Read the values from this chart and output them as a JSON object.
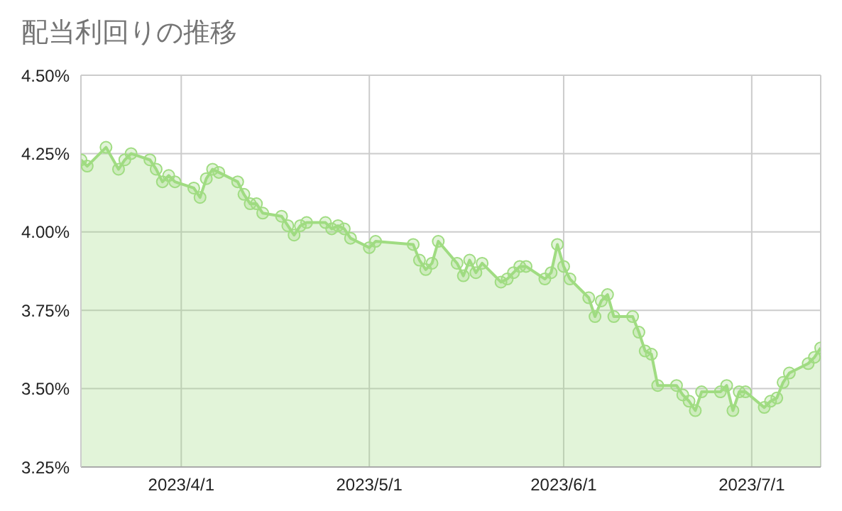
{
  "chart_data": {
    "type": "area",
    "title": "配当利回りの推移",
    "x": [
      "2023-03-16",
      "2023-03-17",
      "2023-03-20",
      "2023-03-22",
      "2023-03-23",
      "2023-03-24",
      "2023-03-27",
      "2023-03-28",
      "2023-03-29",
      "2023-03-30",
      "2023-03-31",
      "2023-04-03",
      "2023-04-04",
      "2023-04-05",
      "2023-04-06",
      "2023-04-07",
      "2023-04-10",
      "2023-04-11",
      "2023-04-12",
      "2023-04-13",
      "2023-04-14",
      "2023-04-17",
      "2023-04-18",
      "2023-04-19",
      "2023-04-20",
      "2023-04-21",
      "2023-04-24",
      "2023-04-25",
      "2023-04-26",
      "2023-04-27",
      "2023-04-28",
      "2023-05-01",
      "2023-05-02",
      "2023-05-08",
      "2023-05-09",
      "2023-05-10",
      "2023-05-11",
      "2023-05-12",
      "2023-05-15",
      "2023-05-16",
      "2023-05-17",
      "2023-05-18",
      "2023-05-19",
      "2023-05-22",
      "2023-05-23",
      "2023-05-24",
      "2023-05-25",
      "2023-05-26",
      "2023-05-29",
      "2023-05-30",
      "2023-05-31",
      "2023-06-01",
      "2023-06-02",
      "2023-06-05",
      "2023-06-06",
      "2023-06-07",
      "2023-06-08",
      "2023-06-09",
      "2023-06-12",
      "2023-06-13",
      "2023-06-14",
      "2023-06-15",
      "2023-06-16",
      "2023-06-19",
      "2023-06-20",
      "2023-06-21",
      "2023-06-22",
      "2023-06-23",
      "2023-06-26",
      "2023-06-27",
      "2023-06-28",
      "2023-06-29",
      "2023-06-30",
      "2023-07-03",
      "2023-07-04",
      "2023-07-05",
      "2023-07-06",
      "2023-07-07",
      "2023-07-10",
      "2023-07-11",
      "2023-07-12"
    ],
    "series": [
      {
        "color": "#a0dc82",
        "values": [
          4.23,
          4.21,
          4.27,
          4.2,
          4.23,
          4.25,
          4.23,
          4.2,
          4.16,
          4.18,
          4.16,
          4.14,
          4.11,
          4.17,
          4.2,
          4.19,
          4.16,
          4.12,
          4.09,
          4.09,
          4.06,
          4.05,
          4.02,
          3.99,
          4.02,
          4.03,
          4.03,
          4.01,
          4.02,
          4.01,
          3.98,
          3.95,
          3.97,
          3.96,
          3.91,
          3.88,
          3.9,
          3.97,
          3.9,
          3.86,
          3.91,
          3.87,
          3.9,
          3.84,
          3.85,
          3.87,
          3.89,
          3.89,
          3.85,
          3.87,
          3.96,
          3.89,
          3.85,
          3.79,
          3.73,
          3.78,
          3.8,
          3.73,
          3.73,
          3.68,
          3.62,
          3.61,
          3.51,
          3.51,
          3.48,
          3.46,
          3.43,
          3.49,
          3.49,
          3.51,
          3.43,
          3.49,
          3.49,
          3.44,
          3.46,
          3.47,
          3.52,
          3.55,
          3.58,
          3.6,
          3.63
        ]
      }
    ],
    "xlim": [
      "2023-03-16",
      "2023-07-12"
    ],
    "xticks": [
      {
        "value": "2023-04-01",
        "label": "2023/4/1"
      },
      {
        "value": "2023-05-01",
        "label": "2023/5/1"
      },
      {
        "value": "2023-06-01",
        "label": "2023/6/1"
      },
      {
        "value": "2023-07-01",
        "label": "2023/7/1"
      }
    ],
    "ylim": [
      3.25,
      4.5
    ],
    "yticks": [
      {
        "value": 3.25,
        "label": "3.25%"
      },
      {
        "value": 3.5,
        "label": "3.50%"
      },
      {
        "value": 3.75,
        "label": "3.75%"
      },
      {
        "value": 4.0,
        "label": "4.00%"
      },
      {
        "value": 4.25,
        "label": "4.25%"
      },
      {
        "value": 4.5,
        "label": "4.50%"
      }
    ],
    "grid": true,
    "legend": false,
    "marker": "circle",
    "line_style": "solid"
  }
}
